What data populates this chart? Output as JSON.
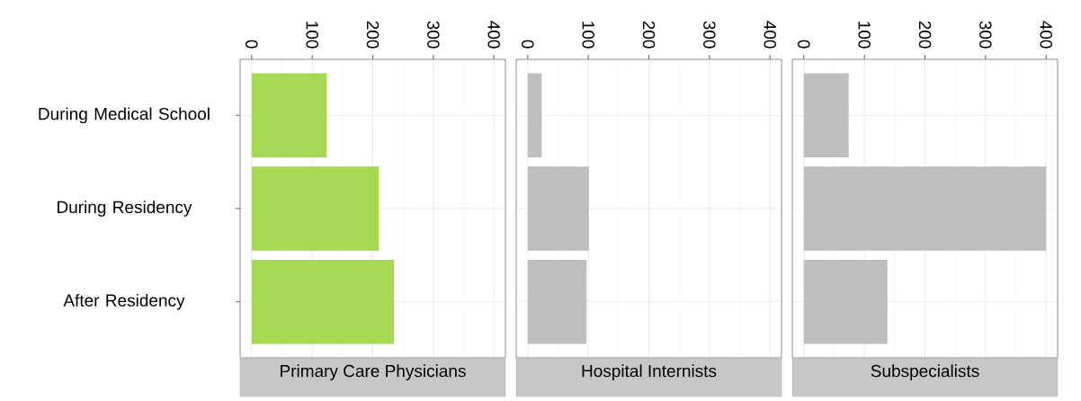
{
  "chart_data": [
    {
      "type": "bar",
      "orientation": "horizontal",
      "title": "Primary Care Physicians",
      "categories": [
        "During Medical School",
        "During Residency",
        "After Residency"
      ],
      "values": [
        124,
        210,
        235
      ],
      "color": "#a6d854",
      "xlim": [
        -19,
        419
      ],
      "xticks": [
        0,
        100,
        200,
        300,
        400
      ],
      "grid": true
    },
    {
      "type": "bar",
      "orientation": "horizontal",
      "title": "Hospital Internists",
      "categories": [
        null,
        null,
        null
      ],
      "values": [
        23,
        101,
        97
      ],
      "color": "#bebebe",
      "xlim": [
        -19,
        419
      ],
      "xticks": [
        0,
        100,
        200,
        300,
        400
      ],
      "grid": true,
      "tick_labels": "x"
    },
    {
      "type": "bar",
      "orientation": "horizontal",
      "title": "Subspecialists",
      "categories": [
        null,
        null,
        null
      ],
      "values": [
        74,
        400,
        138
      ],
      "color": "#bebebe",
      "xlim": [
        -19,
        419
      ],
      "xticks": [
        0,
        100,
        200,
        300,
        400
      ],
      "grid": true,
      "tick_labels": "x"
    }
  ]
}
